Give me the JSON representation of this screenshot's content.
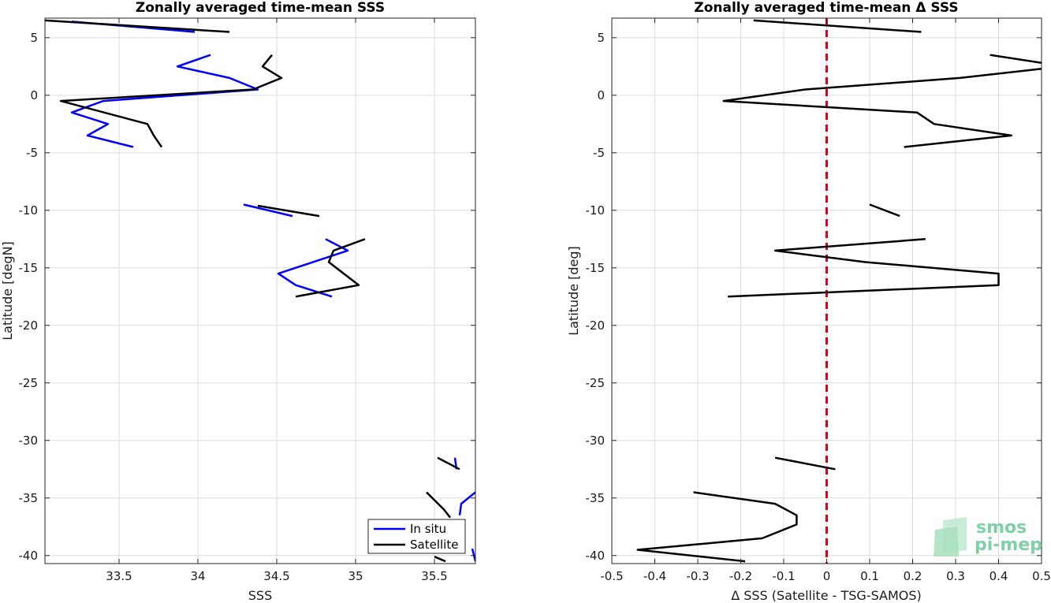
{
  "chart_data": [
    {
      "type": "line",
      "title": "Zonally averaged time-mean SSS",
      "xlabel": "SSS",
      "ylabel": "Latitude [degN]",
      "xlim": [
        33.03,
        35.76
      ],
      "ylim": [
        -40.7,
        6.7
      ],
      "xticks": [
        33.5,
        34,
        34.5,
        35,
        35.5
      ],
      "xtick_labels": [
        "33.5",
        "34",
        "34.5",
        "35",
        "35.5"
      ],
      "yticks": [
        5,
        0,
        -5,
        -10,
        -15,
        -20,
        -25,
        -30,
        -35,
        -40
      ],
      "ytick_labels": [
        "5",
        "0",
        "-5",
        "-10",
        "-15",
        "-20",
        "-25",
        "-30",
        "-35",
        "-40"
      ],
      "grid": true,
      "legend_position": "bottom-right",
      "series": [
        {
          "name": "In situ",
          "color": "#0000ff",
          "segments": [
            [
              [
                33.2,
                6.4
              ],
              [
                33.98,
                5.5
              ]
            ],
            [
              [
                34.08,
                3.5
              ],
              [
                33.87,
                2.5
              ],
              [
                34.2,
                1.5
              ],
              [
                34.38,
                0.5
              ],
              [
                33.4,
                -0.5
              ],
              [
                33.2,
                -1.5
              ],
              [
                33.43,
                -2.5
              ],
              [
                33.3,
                -3.5
              ],
              [
                33.59,
                -4.5
              ]
            ],
            [
              [
                34.29,
                -9.5
              ],
              [
                34.6,
                -10.5
              ]
            ],
            [
              [
                34.81,
                -12.5
              ],
              [
                34.95,
                -13.5
              ],
              [
                34.51,
                -15.5
              ],
              [
                34.62,
                -16.5
              ],
              [
                34.85,
                -17.5
              ]
            ],
            [
              [
                35.63,
                -31.5
              ],
              [
                35.64,
                -32.5
              ]
            ],
            [
              [
                35.76,
                -34.5
              ],
              [
                35.67,
                -35.5
              ],
              [
                35.66,
                -36.5
              ]
            ],
            [
              [
                35.74,
                -39.4
              ],
              [
                35.76,
                -40.5
              ]
            ]
          ]
        },
        {
          "name": "Satellite",
          "color": "#000000",
          "segments": [
            [
              [
                33.03,
                6.5
              ],
              [
                34.2,
                5.5
              ]
            ],
            [
              [
                34.47,
                3.5
              ],
              [
                34.41,
                2.5
              ],
              [
                34.53,
                1.5
              ],
              [
                34.35,
                0.5
              ],
              [
                33.13,
                -0.5
              ],
              [
                33.68,
                -2.5
              ],
              [
                33.72,
                -3.5
              ],
              [
                33.77,
                -4.5
              ]
            ],
            [
              [
                34.38,
                -9.6
              ],
              [
                34.77,
                -10.5
              ]
            ],
            [
              [
                35.06,
                -12.5
              ],
              [
                34.86,
                -13.5
              ],
              [
                34.83,
                -14.5
              ],
              [
                35.02,
                -16.5
              ],
              [
                34.62,
                -17.5
              ]
            ],
            [
              [
                35.52,
                -31.5
              ],
              [
                35.66,
                -32.5
              ]
            ],
            [
              [
                35.45,
                -34.5
              ],
              [
                35.56,
                -36.0
              ],
              [
                35.6,
                -36.7
              ]
            ],
            [
              [
                35.5,
                -40.1
              ],
              [
                35.57,
                -40.5
              ]
            ]
          ]
        }
      ]
    },
    {
      "type": "line",
      "title": "Zonally averaged time-mean Δ SSS",
      "xlabel": "Δ SSS (Satellite - TSG-SAMOS)",
      "ylabel": "Latitude [deg]",
      "xlim": [
        -0.5,
        0.5
      ],
      "ylim": [
        -40.7,
        6.7
      ],
      "xticks": [
        -0.5,
        -0.4,
        -0.3,
        -0.2,
        -0.1,
        0,
        0.1,
        0.2,
        0.3,
        0.4,
        0.5
      ],
      "xtick_labels": [
        "-0.5",
        "-0.4",
        "-0.3",
        "-0.2",
        "-0.1",
        "0",
        "0.1",
        "0.2",
        "0.3",
        "0.4",
        "0.5"
      ],
      "yticks": [
        5,
        0,
        -5,
        -10,
        -15,
        -20,
        -25,
        -30,
        -35,
        -40
      ],
      "ytick_labels": [
        "5",
        "0",
        "-5",
        "-10",
        "-15",
        "-20",
        "-25",
        "-30",
        "-35",
        "-40"
      ],
      "grid": true,
      "reference_line": {
        "x": 0,
        "color": "#e0001a",
        "style": "dashed"
      },
      "series": [
        {
          "color": "#000000",
          "segments": [
            [
              [
                -0.17,
                6.5
              ],
              [
                0.22,
                5.5
              ]
            ],
            [
              [
                0.38,
                3.5
              ],
              [
                0.52,
                2.7
              ]
            ],
            [
              [
                0.5,
                2.3
              ],
              [
                0.31,
                1.5
              ],
              [
                -0.05,
                0.5
              ],
              [
                -0.24,
                -0.5
              ],
              [
                0.21,
                -1.5
              ],
              [
                0.25,
                -2.5
              ],
              [
                0.43,
                -3.5
              ],
              [
                0.18,
                -4.5
              ]
            ],
            [
              [
                0.1,
                -9.5
              ],
              [
                0.17,
                -10.5
              ]
            ],
            [
              [
                0.23,
                -12.5
              ],
              [
                -0.12,
                -13.5
              ],
              [
                0.09,
                -14.5
              ],
              [
                0.4,
                -15.5
              ],
              [
                0.4,
                -16.5
              ],
              [
                -0.23,
                -17.5
              ]
            ],
            [
              [
                -0.12,
                -31.5
              ],
              [
                0.02,
                -32.5
              ]
            ],
            [
              [
                -0.31,
                -34.5
              ],
              [
                -0.12,
                -35.5
              ],
              [
                -0.07,
                -36.5
              ],
              [
                -0.07,
                -37.3
              ],
              [
                -0.15,
                -38.5
              ],
              [
                -0.44,
                -39.5
              ],
              [
                -0.19,
                -40.5
              ]
            ]
          ]
        }
      ]
    }
  ],
  "legend": {
    "entries": [
      {
        "label": "In situ",
        "color": "#0000ff"
      },
      {
        "label": "Satellite",
        "color": "#000000"
      }
    ]
  },
  "logo": {
    "line1": "smos",
    "line2": "pi-mep",
    "color": "#7fd0a6"
  }
}
